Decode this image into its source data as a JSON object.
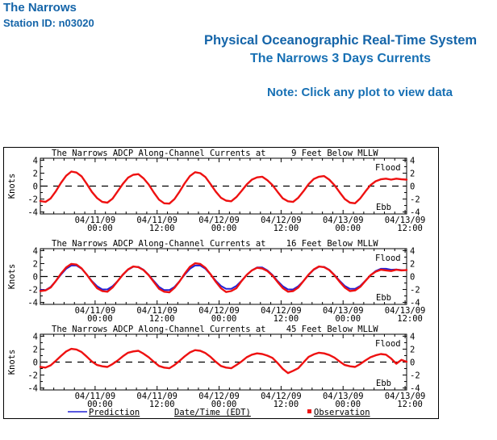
{
  "page": {
    "station_name": "The Narrows",
    "station_id": "Station ID: n03020",
    "heading1": "Physical Oceanographic Real-Time System",
    "heading2": "The Narrows 3 Days Currents",
    "note": "Note: Click any plot to view data"
  },
  "colors": {
    "header_blue": "#1565a9",
    "subtitle_blue": "#1770b4",
    "observation_red": "#ee1111",
    "prediction_blue": "#2121d6",
    "axis_black": "#000000"
  },
  "figure": {
    "legend": {
      "prediction_label": "Prediction",
      "axis_label": "Date/Time (EDT)",
      "observation_label": "Observation"
    }
  },
  "chart_data": [
    {
      "type": "line",
      "title": "The Narrows ADCP Along-Channel Currents at     9 Feet Below MLLW",
      "ylabel": "Knots",
      "ylim": [
        -4.3,
        4.3
      ],
      "yticks": [
        4,
        2,
        0,
        -2,
        -4
      ],
      "annotations": [
        "Flood",
        "Ebb"
      ],
      "zero_line_dashed": true,
      "x_tick_labels": [
        [
          "04/11/09",
          "00:00"
        ],
        [
          "04/11/09",
          "12:00"
        ],
        [
          "04/12/09",
          "00:00"
        ],
        [
          "04/12/09",
          "12:00"
        ],
        [
          "04/13/09",
          "00:00"
        ],
        [
          "04/13/09",
          "12:00"
        ]
      ],
      "x_tick_hours": [
        0,
        12,
        24,
        36,
        48,
        60
      ],
      "x_start_hour": -10.6,
      "x_span_hours": 70.9,
      "x_minor_step_hours": 2,
      "series": [
        {
          "name": "Observation",
          "style": "jagged",
          "color_key": "observation_red",
          "values": [
            -2.3,
            -2.45,
            -1.9,
            -0.8,
            0.5,
            1.6,
            2.25,
            2.1,
            1.5,
            0.35,
            -0.9,
            -1.85,
            -2.45,
            -2.55,
            -1.95,
            -0.8,
            0.35,
            1.3,
            1.75,
            1.85,
            1.2,
            0.25,
            -1.0,
            -2.1,
            -2.65,
            -2.7,
            -2.0,
            -0.85,
            0.45,
            1.55,
            2.15,
            2.0,
            1.4,
            0.3,
            -0.85,
            -1.8,
            -2.25,
            -2.35,
            -1.7,
            -0.75,
            0.25,
            1.0,
            1.35,
            1.45,
            0.9,
            0.15,
            -0.9,
            -1.9,
            -2.35,
            -2.45,
            -1.8,
            -0.8,
            0.3,
            1.1,
            1.45,
            1.55,
            1.0,
            0.15,
            -0.95,
            -2.0,
            -2.55,
            -2.65,
            -1.9,
            -0.85,
            0.15,
            0.75,
            1.05,
            1.15,
            1.0,
            1.15,
            1.05,
            1.0
          ]
        }
      ]
    },
    {
      "type": "line",
      "title": "The Narrows ADCP Along-Channel Currents at    16 Feet Below MLLW",
      "ylabel": "Knots",
      "ylim": [
        -4.3,
        4.3
      ],
      "yticks": [
        4,
        2,
        0,
        -2,
        -4
      ],
      "annotations": [
        "Flood",
        "Ebb"
      ],
      "zero_line_dashed": true,
      "x_tick_labels": [
        [
          "04/11/09",
          "00:00"
        ],
        [
          "04/11/09",
          "12:00"
        ],
        [
          "04/12/09",
          "00:00"
        ],
        [
          "04/12/09",
          "12:00"
        ],
        [
          "04/13/09",
          "00:00"
        ],
        [
          "04/13/09",
          "12:00"
        ]
      ],
      "x_tick_hours": [
        0,
        12,
        24,
        36,
        48,
        60
      ],
      "x_start_hour": -10.6,
      "x_span_hours": 70.9,
      "x_minor_step_hours": 2,
      "series": [
        {
          "name": "Prediction",
          "style": "smooth",
          "color_key": "prediction_blue",
          "values": [
            -2.1,
            -2.1,
            -1.6,
            -0.7,
            0.3,
            1.2,
            1.7,
            1.7,
            1.2,
            0.3,
            -0.7,
            -1.5,
            -2.0,
            -2.0,
            -1.5,
            -0.7,
            0.25,
            1.05,
            1.5,
            1.5,
            1.05,
            0.25,
            -0.7,
            -1.6,
            -2.1,
            -2.1,
            -1.6,
            -0.7,
            0.3,
            1.2,
            1.7,
            1.7,
            1.2,
            0.3,
            -0.65,
            -1.45,
            -1.9,
            -1.9,
            -1.45,
            -0.65,
            0.25,
            0.95,
            1.4,
            1.4,
            0.95,
            0.25,
            -0.7,
            -1.5,
            -2.0,
            -2.0,
            -1.5,
            -0.7,
            0.25,
            1.05,
            1.5,
            1.5,
            1.05,
            0.25,
            -0.65,
            -1.45,
            -1.9,
            -1.9,
            -1.45,
            -0.65,
            0.2,
            0.85,
            1.2,
            1.2,
            1.05,
            1.1,
            1.0,
            1.0
          ]
        },
        {
          "name": "Observation",
          "style": "jagged",
          "color_key": "observation_red",
          "values": [
            -2.25,
            -2.15,
            -1.7,
            -0.7,
            0.45,
            1.4,
            1.95,
            1.85,
            1.25,
            0.3,
            -0.8,
            -1.8,
            -2.25,
            -2.35,
            -1.7,
            -0.7,
            0.3,
            1.1,
            1.55,
            1.45,
            1.0,
            0.2,
            -0.85,
            -1.9,
            -2.35,
            -2.45,
            -1.75,
            -0.75,
            0.45,
            1.5,
            2.05,
            1.95,
            1.35,
            0.35,
            -0.8,
            -1.8,
            -2.4,
            -2.25,
            -1.8,
            -0.7,
            0.25,
            0.95,
            1.35,
            1.25,
            0.85,
            0.15,
            -0.85,
            -1.8,
            -2.35,
            -2.25,
            -1.7,
            -0.7,
            0.3,
            1.1,
            1.55,
            1.45,
            1.0,
            0.2,
            -0.8,
            -1.7,
            -2.25,
            -2.15,
            -1.6,
            -0.7,
            0.2,
            0.75,
            1.05,
            0.95,
            0.85,
            1.05,
            0.95,
            1.0
          ]
        }
      ]
    },
    {
      "type": "line",
      "title": "The Narrows ADCP Along-Channel Currents at    45 Feet Below MLLW",
      "ylabel": "Knots",
      "ylim": [
        -4.3,
        4.3
      ],
      "yticks": [
        4,
        2,
        0,
        -2,
        -4
      ],
      "annotations": [
        "Flood",
        "Ebb"
      ],
      "zero_line_dashed": true,
      "x_tick_labels": [
        [
          "04/11/09",
          "00:00"
        ],
        [
          "04/11/09",
          "12:00"
        ],
        [
          "04/12/09",
          "00:00"
        ],
        [
          "04/12/09",
          "12:00"
        ],
        [
          "04/13/09",
          "00:00"
        ],
        [
          "04/13/09",
          "12:00"
        ]
      ],
      "x_tick_hours": [
        0,
        12,
        24,
        36,
        48,
        60
      ],
      "x_start_hour": -10.6,
      "x_span_hours": 70.9,
      "x_minor_step_hours": 2,
      "series": [
        {
          "name": "Observation",
          "style": "jagged",
          "color_key": "observation_red",
          "values": [
            -0.75,
            -0.85,
            -0.5,
            0.2,
            0.95,
            1.65,
            2.05,
            1.95,
            1.55,
            0.85,
            0.1,
            -0.45,
            -0.65,
            -0.75,
            -0.3,
            0.25,
            0.9,
            1.45,
            1.65,
            1.75,
            1.3,
            0.75,
            0.05,
            -0.6,
            -0.85,
            -0.95,
            -0.45,
            0.2,
            0.9,
            1.5,
            1.85,
            1.75,
            1.4,
            0.8,
            0.05,
            -0.6,
            -0.85,
            -0.95,
            -0.45,
            0.1,
            0.75,
            1.15,
            1.35,
            1.25,
            1.0,
            0.65,
            -0.15,
            -1.05,
            -1.7,
            -1.35,
            -0.95,
            -0.05,
            0.8,
            1.2,
            1.45,
            1.35,
            1.1,
            0.7,
            0.1,
            -0.45,
            -0.65,
            -0.75,
            -0.3,
            0.25,
            0.75,
            1.05,
            1.25,
            1.15,
            0.55,
            -0.25,
            0.35,
            0.05
          ]
        }
      ]
    }
  ]
}
